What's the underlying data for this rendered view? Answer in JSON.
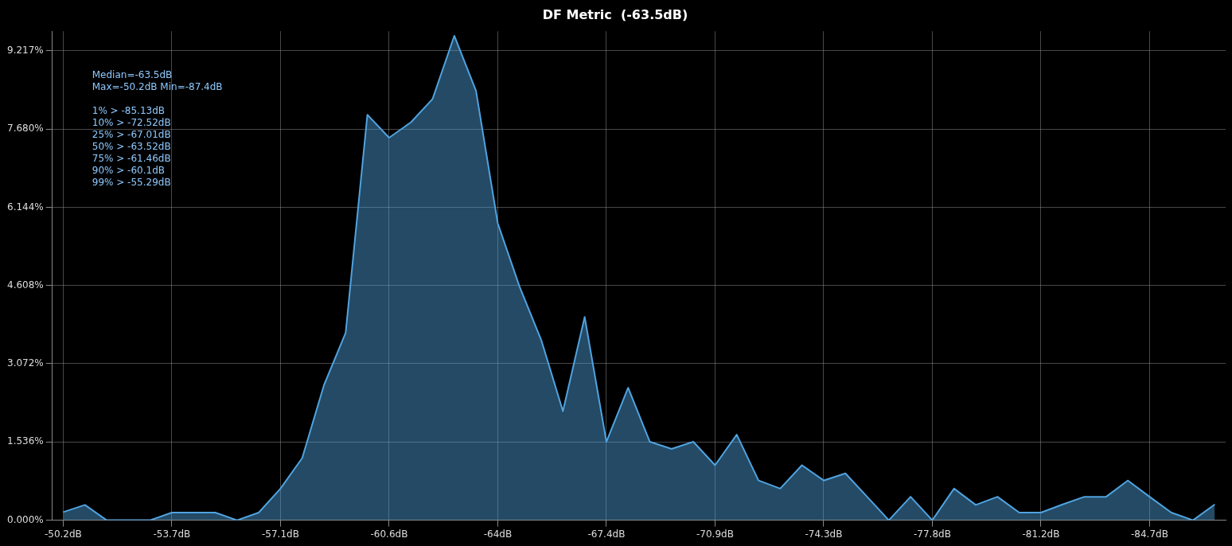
{
  "chart_data": {
    "type": "area",
    "title": "DF Metric  (-63.5dB)",
    "categories": [
      "-50.2dB",
      null,
      null,
      null,
      null,
      "-53.7dB",
      null,
      null,
      null,
      null,
      "-57.1dB",
      null,
      null,
      null,
      null,
      "-60.6dB",
      null,
      null,
      null,
      null,
      "-64dB",
      null,
      null,
      null,
      null,
      "-67.4dB",
      null,
      null,
      null,
      null,
      "-70.9dB",
      null,
      null,
      null,
      null,
      "-74.3dB",
      null,
      null,
      null,
      null,
      "-77.8dB",
      null,
      null,
      null,
      null,
      "-81.2dB",
      null,
      null,
      null,
      null,
      "-84.7dB",
      null,
      null,
      null
    ],
    "series": [
      {
        "color": "#4fa3e0",
        "values": [
          0.16,
          0.3,
          0,
          0,
          0,
          0.15,
          0.15,
          0.15,
          0,
          0.15,
          0.62,
          1.22,
          2.65,
          3.68,
          7.96,
          7.51,
          7.81,
          8.27,
          9.51,
          8.43,
          5.83,
          4.59,
          3.54,
          2.14,
          3.99,
          1.54,
          2.6,
          1.54,
          1.4,
          1.54,
          1.08,
          1.68,
          0.78,
          0.62,
          1.08,
          0.78,
          0.92,
          0.46,
          0,
          0.46,
          0,
          0.62,
          0.3,
          0.46,
          0.15,
          0.15,
          0.31,
          0.46,
          0.46,
          0.78,
          0.46,
          0.15,
          0,
          0.31
        ]
      }
    ],
    "ylim": [
      0,
      9.6
    ],
    "yticks": [
      {
        "value": 0,
        "label": "0.000%"
      },
      {
        "value": 1.536,
        "label": "1.536%"
      },
      {
        "value": 3.072,
        "label": "3.072%"
      },
      {
        "value": 4.608,
        "label": "4.608%"
      },
      {
        "value": 6.144,
        "label": "6.144%"
      },
      {
        "value": 7.68,
        "label": "7.680%"
      },
      {
        "value": 9.217,
        "label": "9.217%"
      }
    ],
    "grid": true,
    "legend": false,
    "marker": "none",
    "line_style": "solid",
    "annotations": [
      "Median=-63.5dB",
      "Max=-50.2dB Min=-87.4dB",
      "1% > -85.13dB",
      "10% > -72.52dB",
      "25% > -67.01dB",
      "50% > -63.52dB",
      "75% > -61.46dB",
      "90% > -60.1dB",
      "99% > -55.29dB"
    ]
  }
}
